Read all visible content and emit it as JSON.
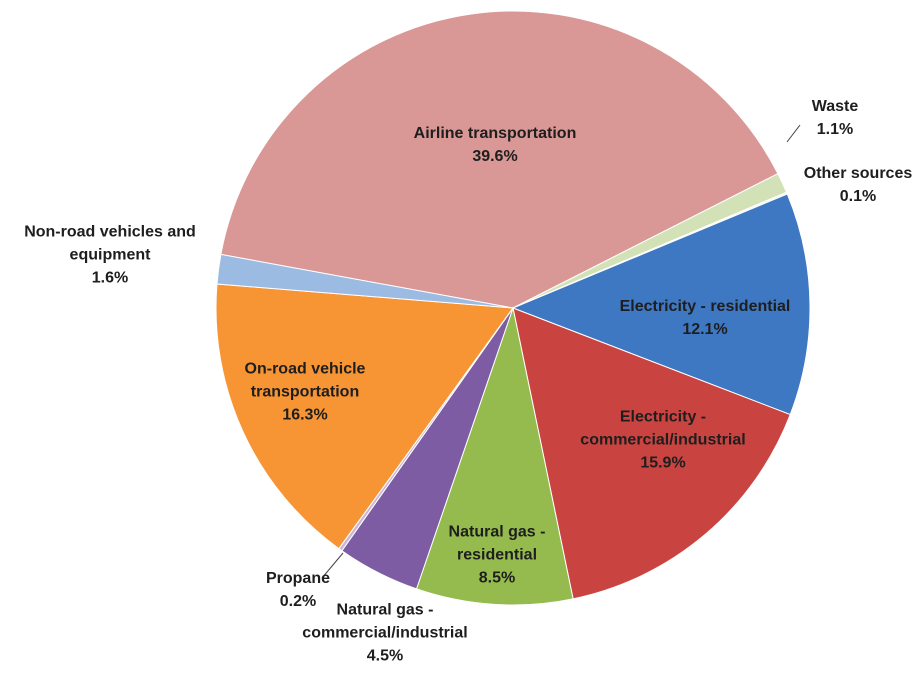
{
  "chart_data": {
    "type": "pie",
    "categories": [
      "Airline transportation",
      "Waste",
      "Other sources",
      "Electricity - residential",
      "Electricity - commercial/industrial",
      "Natural gas - residential",
      "Natural gas - commercial/industrial",
      "Propane",
      "On-road vehicle transportation",
      "Non-road vehicles and equipment"
    ],
    "values": [
      39.6,
      1.1,
      0.1,
      12.1,
      15.9,
      8.5,
      4.5,
      0.2,
      16.3,
      1.6
    ],
    "value_labels": [
      "39.6%",
      "1.1%",
      "0.1%",
      "12.1%",
      "15.9%",
      "8.5%",
      "4.5%",
      "0.2%",
      "16.3%",
      "1.6%"
    ],
    "colors": [
      "#d99795",
      "#d3e2b6",
      "#f2f2f2",
      "#3f78c2",
      "#c94441",
      "#95bb4e",
      "#7d5ca3",
      "#c9b8dc",
      "#f79433",
      "#9cbbe2"
    ]
  }
}
